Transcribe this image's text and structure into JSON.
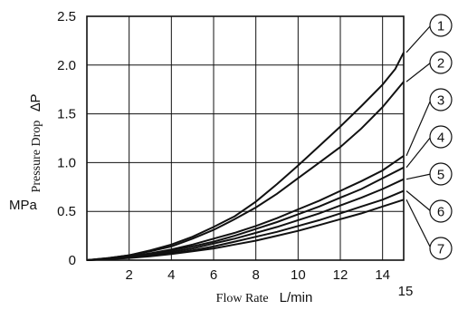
{
  "chart_data": {
    "type": "line",
    "xlabel_text": "Flow Rate",
    "xlabel_unit": "L/min",
    "ylabel_text": "Pressure Drop",
    "ylabel_symbol": "∆P",
    "ylabel_unit": "MPa",
    "xlim": [
      0,
      15
    ],
    "ylim": [
      0,
      2.5
    ],
    "x_ticks": [
      2,
      4,
      6,
      8,
      10,
      12,
      14
    ],
    "x_tick_labels": [
      "2",
      "4",
      "6",
      "8",
      "10",
      "12",
      "14"
    ],
    "x_end_label": "15",
    "y_ticks": [
      0,
      0.5,
      1.0,
      1.5,
      2.0,
      2.5
    ],
    "y_tick_labels": [
      "0",
      "0.5",
      "1.0",
      "1.5",
      "2.0",
      "2.5"
    ],
    "grid": true,
    "series": [
      {
        "name": "1",
        "x": [
          0,
          1,
          2,
          3,
          4,
          5,
          6,
          7,
          8,
          9,
          10,
          11,
          12,
          13,
          14,
          14.6,
          15
        ],
        "y": [
          0,
          0.02,
          0.05,
          0.1,
          0.16,
          0.24,
          0.34,
          0.45,
          0.6,
          0.78,
          0.97,
          1.17,
          1.37,
          1.58,
          1.8,
          1.96,
          2.13
        ]
      },
      {
        "name": "2",
        "x": [
          0,
          1,
          2,
          3,
          4,
          5,
          6,
          7,
          8,
          9,
          10,
          11,
          12,
          13,
          14,
          15
        ],
        "y": [
          0,
          0.02,
          0.05,
          0.09,
          0.14,
          0.22,
          0.31,
          0.42,
          0.54,
          0.68,
          0.84,
          1.0,
          1.16,
          1.35,
          1.57,
          1.83
        ]
      },
      {
        "name": "3",
        "x": [
          0,
          1,
          2,
          3,
          4,
          5,
          6,
          7,
          8,
          9,
          10,
          11,
          12,
          13,
          14,
          15
        ],
        "y": [
          0,
          0.015,
          0.04,
          0.07,
          0.11,
          0.16,
          0.22,
          0.28,
          0.35,
          0.43,
          0.52,
          0.61,
          0.71,
          0.81,
          0.92,
          1.07
        ]
      },
      {
        "name": "4",
        "x": [
          0,
          1,
          2,
          3,
          4,
          5,
          6,
          7,
          8,
          9,
          10,
          11,
          12,
          13,
          14,
          15
        ],
        "y": [
          0,
          0.015,
          0.035,
          0.065,
          0.1,
          0.14,
          0.19,
          0.25,
          0.32,
          0.39,
          0.47,
          0.55,
          0.64,
          0.73,
          0.84,
          0.95
        ]
      },
      {
        "name": "5",
        "x": [
          0,
          1,
          2,
          3,
          4,
          5,
          6,
          7,
          8,
          9,
          10,
          11,
          12,
          13,
          14,
          15
        ],
        "y": [
          0,
          0.012,
          0.03,
          0.055,
          0.085,
          0.12,
          0.17,
          0.22,
          0.28,
          0.34,
          0.41,
          0.48,
          0.56,
          0.64,
          0.73,
          0.83
        ]
      },
      {
        "name": "6",
        "x": [
          0,
          1,
          2,
          3,
          4,
          5,
          6,
          7,
          8,
          9,
          10,
          11,
          12,
          13,
          14,
          15
        ],
        "y": [
          0,
          0.01,
          0.025,
          0.045,
          0.07,
          0.1,
          0.14,
          0.19,
          0.24,
          0.29,
          0.35,
          0.41,
          0.48,
          0.55,
          0.62,
          0.71
        ]
      },
      {
        "name": "7",
        "x": [
          0,
          1,
          2,
          3,
          4,
          5,
          6,
          7,
          8,
          9,
          10,
          11,
          12,
          13,
          14,
          15
        ],
        "y": [
          0,
          0.009,
          0.022,
          0.04,
          0.062,
          0.09,
          0.12,
          0.16,
          0.2,
          0.25,
          0.3,
          0.36,
          0.42,
          0.48,
          0.55,
          0.62
        ]
      }
    ]
  }
}
